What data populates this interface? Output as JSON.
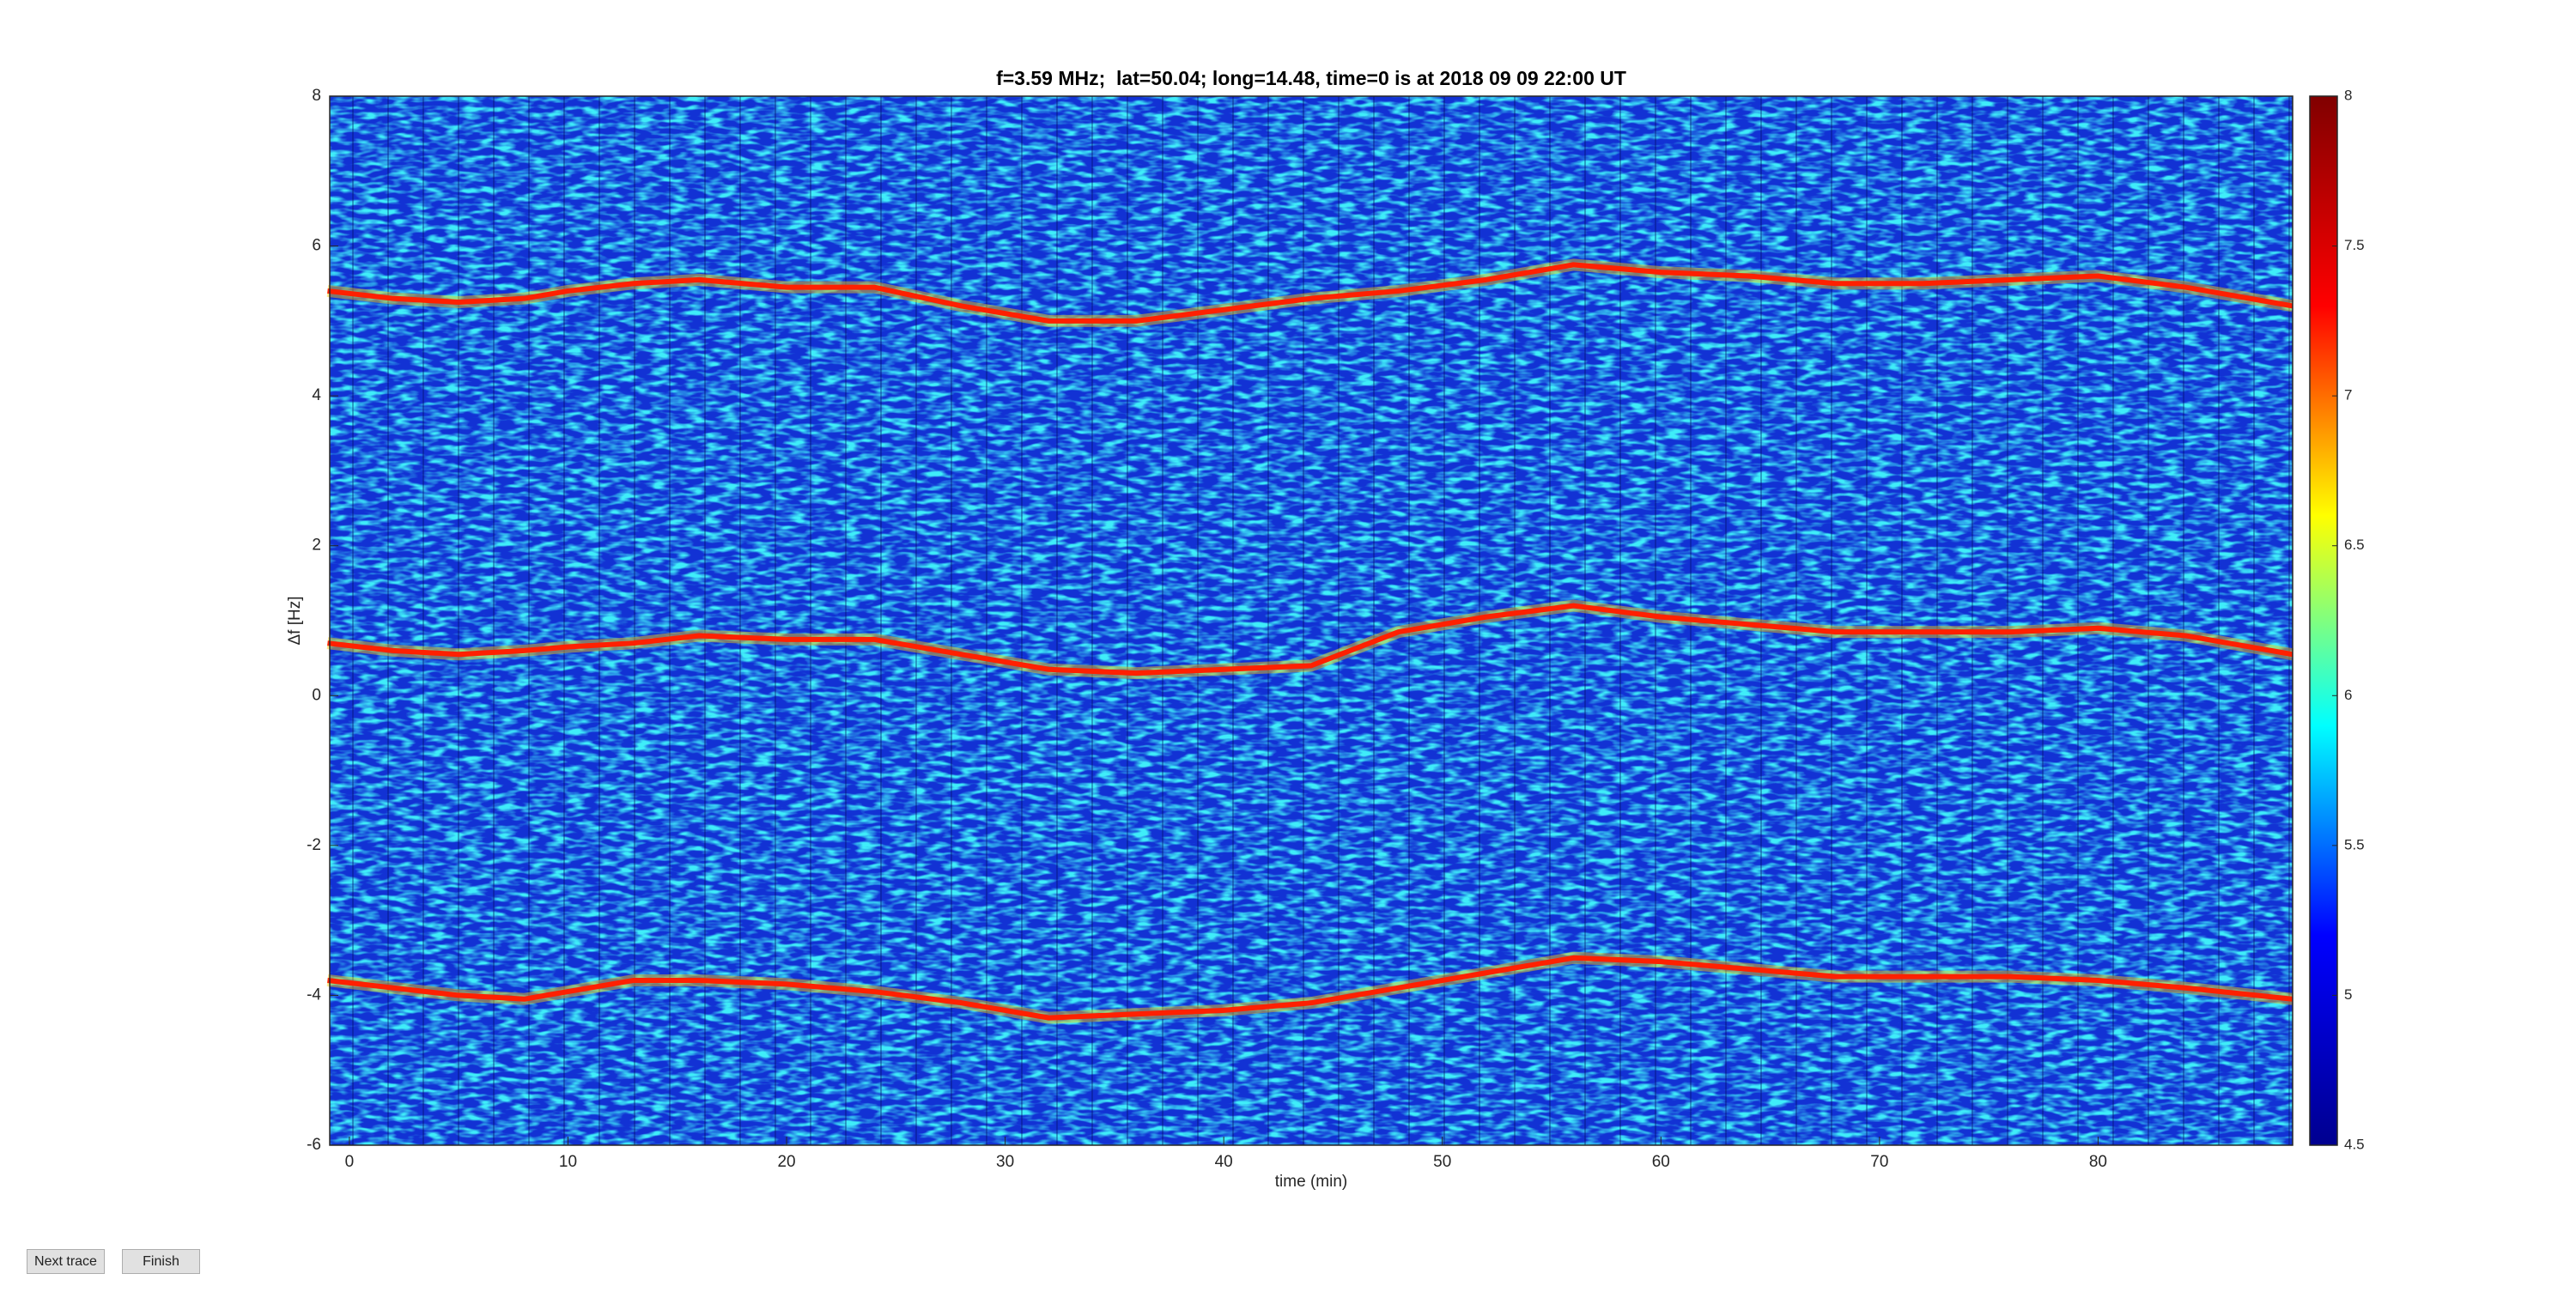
{
  "chart_data": {
    "type": "line",
    "title": "f=3.59 MHz;  lat=50.04; long=14.48, time=0 is at 2018 09 09 22:00 UT",
    "x_label": "time (min)",
    "y_label": "Δf [Hz]",
    "x": [
      -1,
      2,
      5,
      8,
      10,
      13,
      16,
      20,
      24,
      28,
      32,
      36,
      40,
      44,
      48,
      52,
      56,
      60,
      64,
      68,
      72,
      76,
      80,
      84,
      88.9
    ],
    "series": [
      {
        "color": "#ff2000",
        "values": [
          5.4,
          5.3,
          5.25,
          5.3,
          5.4,
          5.5,
          5.55,
          5.45,
          5.45,
          5.2,
          5.0,
          5.0,
          5.15,
          5.3,
          5.4,
          5.55,
          5.75,
          5.65,
          5.6,
          5.5,
          5.5,
          5.55,
          5.6,
          5.45,
          5.2
        ]
      },
      {
        "color": "#ff2000",
        "values": [
          0.7,
          0.6,
          0.55,
          0.6,
          0.65,
          0.7,
          0.8,
          0.75,
          0.75,
          0.55,
          0.35,
          0.3,
          0.35,
          0.4,
          0.85,
          1.05,
          1.2,
          1.05,
          0.95,
          0.85,
          0.85,
          0.85,
          0.9,
          0.8,
          0.55
        ]
      },
      {
        "color": "#ff2000",
        "values": [
          -3.8,
          -3.9,
          -4.0,
          -4.05,
          -3.95,
          -3.8,
          -3.8,
          -3.85,
          -3.95,
          -4.1,
          -4.3,
          -4.25,
          -4.2,
          -4.1,
          -3.9,
          -3.7,
          -3.5,
          -3.55,
          -3.65,
          -3.75,
          -3.75,
          -3.75,
          -3.8,
          -3.9,
          -4.05
        ]
      }
    ],
    "xlim": [
      -0.9,
      88.9
    ],
    "xticks": [
      0,
      10,
      20,
      30,
      40,
      50,
      60,
      70,
      80
    ],
    "ylim": [
      -6,
      8
    ],
    "yticks": [
      -6,
      -4,
      -2,
      0,
      2,
      4,
      6,
      8
    ],
    "colormap": "jet",
    "clim": [
      4.5,
      8
    ],
    "cticks": [
      4.5,
      5,
      5.5,
      6,
      6.5,
      7,
      7.5,
      8
    ],
    "background_color": "#1232d4"
  },
  "buttons": [
    "Next trace",
    "Finish"
  ]
}
